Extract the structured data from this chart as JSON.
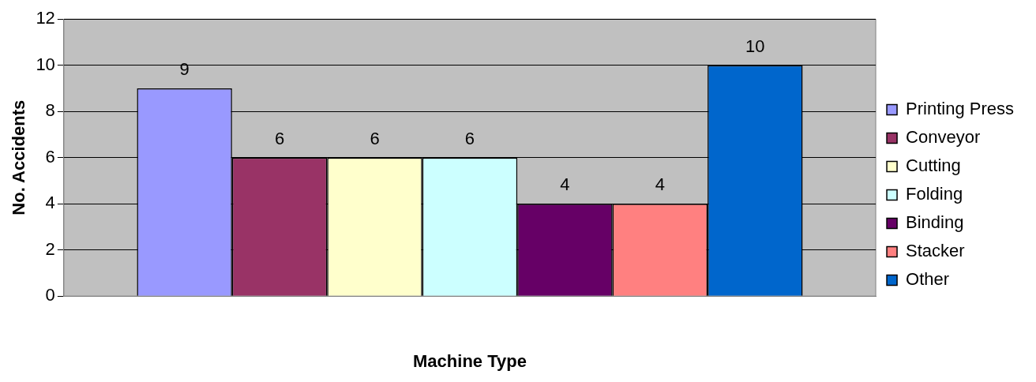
{
  "chart_data": {
    "type": "bar",
    "xlabel": "Machine Type",
    "ylabel": "No. Accidents",
    "categories": [
      null
    ],
    "series": [
      {
        "name": "Printing Press",
        "color": "#9999ff",
        "values": [
          9
        ]
      },
      {
        "name": "Conveyor",
        "color": "#993366",
        "values": [
          6
        ]
      },
      {
        "name": "Cutting",
        "color": "#ffffcc",
        "values": [
          6
        ]
      },
      {
        "name": "Folding",
        "color": "#ccffff",
        "values": [
          6
        ]
      },
      {
        "name": "Binding",
        "color": "#660066",
        "values": [
          4
        ]
      },
      {
        "name": "Stacker",
        "color": "#ff8080",
        "values": [
          4
        ]
      },
      {
        "name": "Other",
        "color": "#0066cc",
        "values": [
          10
        ]
      }
    ],
    "ylim": [
      0,
      12
    ],
    "yticks": [
      0,
      2,
      4,
      6,
      8,
      10,
      12
    ],
    "grid": "y",
    "legend": "right",
    "data_labels": true
  }
}
